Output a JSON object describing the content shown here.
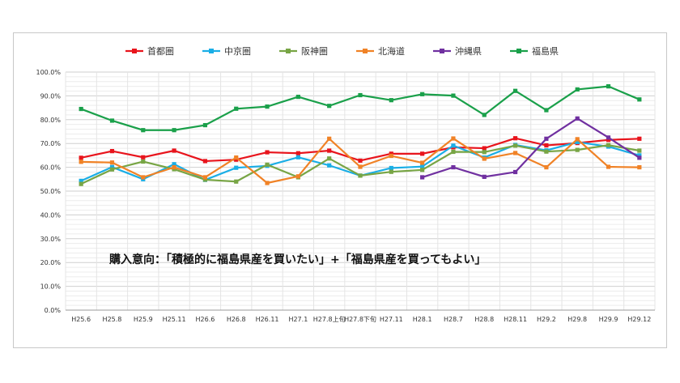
{
  "chart_data": {
    "type": "line",
    "title": "",
    "xlabel": "",
    "ylabel": "",
    "ylim": [
      0,
      100
    ],
    "y_ticks": [
      "0.0%",
      "10.0%",
      "20.0%",
      "30.0%",
      "40.0%",
      "50.0%",
      "60.0%",
      "70.0%",
      "80.0%",
      "90.0%",
      "100.0%"
    ],
    "grid": true,
    "legend_position": "top",
    "categories": [
      "H25.6",
      "H25.8",
      "H25.9",
      "H25.11",
      "H26.6",
      "H26.8",
      "H26.11",
      "H27.1",
      "H27.8上旬",
      "H27.8下旬",
      "H27.11",
      "H28.1",
      "H28.7",
      "H28.8",
      "H28.11",
      "H29.2",
      "H29.8",
      "H29.9",
      "H29.12"
    ],
    "annotation": "購入意向：「積極的に福島県産を買いたい」+「福島県産を買ってもよい」",
    "series": [
      {
        "name": "首都圏",
        "color": "#e8141c",
        "values": [
          64,
          66.8,
          64.2,
          67,
          62.6,
          63.2,
          66.3,
          65.9,
          67,
          62.8,
          65.7,
          65.7,
          68.4,
          68,
          72.2,
          69.2,
          70.2,
          71.5,
          72
        ]
      },
      {
        "name": "中京圏",
        "color": "#1aaee6",
        "values": [
          54.3,
          60.1,
          55,
          61.3,
          54.7,
          59.8,
          60.6,
          64.2,
          60.8,
          56.5,
          59.7,
          60.3,
          69.1,
          64.1,
          69.4,
          67.1,
          70.6,
          68.7,
          65
        ]
      },
      {
        "name": "阪神圏",
        "color": "#78a545",
        "values": [
          53,
          59.1,
          62.4,
          59.2,
          54.8,
          54,
          61.1,
          55.8,
          63.7,
          56.5,
          58.1,
          58.9,
          66.5,
          66.4,
          69.1,
          66.6,
          67.3,
          69.3,
          67
        ]
      },
      {
        "name": "北海道",
        "color": "#f08226",
        "values": [
          62.3,
          62,
          55.8,
          60,
          55.8,
          64.1,
          53.4,
          56.2,
          72,
          60.2,
          64.8,
          61.9,
          72.1,
          63.6,
          66,
          60,
          71.8,
          60.2,
          60
        ]
      },
      {
        "name": "沖縄県",
        "color": "#7030a0",
        "values": [
          null,
          null,
          null,
          null,
          null,
          null,
          null,
          null,
          null,
          null,
          null,
          55.8,
          60,
          56,
          58,
          72,
          80.5,
          72.5,
          64
        ]
      },
      {
        "name": "福島県",
        "color": "#1aa04a",
        "values": [
          84.5,
          79.6,
          75.6,
          75.6,
          77.7,
          84.6,
          85.5,
          89.6,
          85.8,
          90.3,
          88.2,
          90.7,
          90.1,
          82,
          92.1,
          84,
          92.7,
          94,
          88.5
        ]
      }
    ]
  }
}
